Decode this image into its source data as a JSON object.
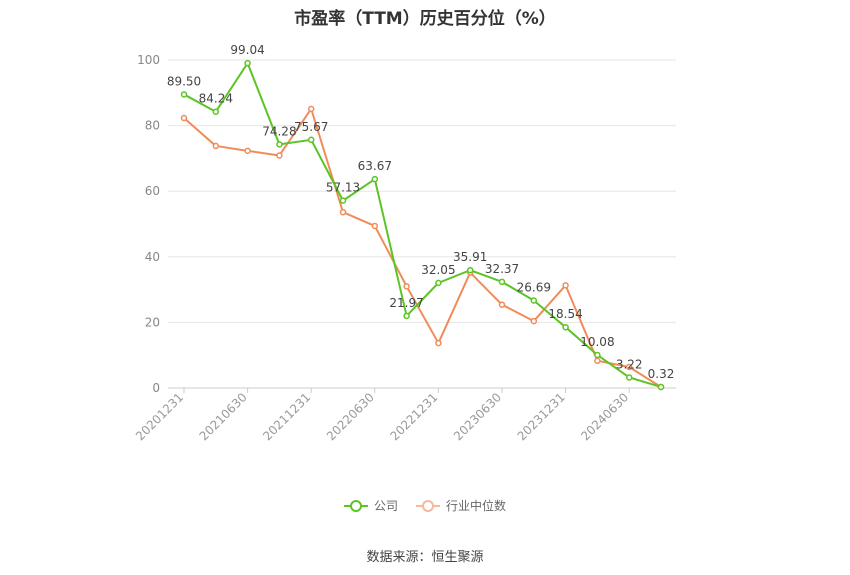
{
  "chart_data": {
    "type": "line",
    "title": "市盈率（TTM）历史百分位（%）",
    "x": [
      "20201231",
      "20210331",
      "20210630",
      "20210930",
      "20211231",
      "20220331",
      "20220630",
      "20220930",
      "20221231",
      "20230331",
      "20230630",
      "20230930",
      "20231231",
      "20240331",
      "20240630",
      "20240930"
    ],
    "x_tick_labels": [
      "20201231",
      "20210630",
      "20211231",
      "20220630",
      "20221231",
      "20230630",
      "20231231",
      "20240630"
    ],
    "ylim": [
      0,
      100
    ],
    "y_ticks": [
      0,
      20,
      40,
      60,
      80,
      100
    ],
    "grid": true,
    "legend_position": "bottom",
    "series": [
      {
        "name": "公司",
        "color": "#5cc424",
        "show_labels": true,
        "values": [
          89.5,
          84.24,
          99.04,
          74.28,
          75.67,
          57.13,
          63.67,
          21.97,
          32.05,
          35.91,
          32.37,
          26.69,
          18.54,
          10.08,
          3.22,
          0.32
        ]
      },
      {
        "name": "行业中位数",
        "color": "#f08c5a",
        "show_labels": false,
        "values": [
          82.3,
          73.8,
          72.3,
          70.9,
          85.1,
          53.6,
          49.4,
          31.0,
          13.7,
          35.2,
          25.4,
          20.4,
          31.3,
          8.3,
          6.4,
          0.3
        ]
      }
    ],
    "source": "数据来源：恒生聚源"
  }
}
